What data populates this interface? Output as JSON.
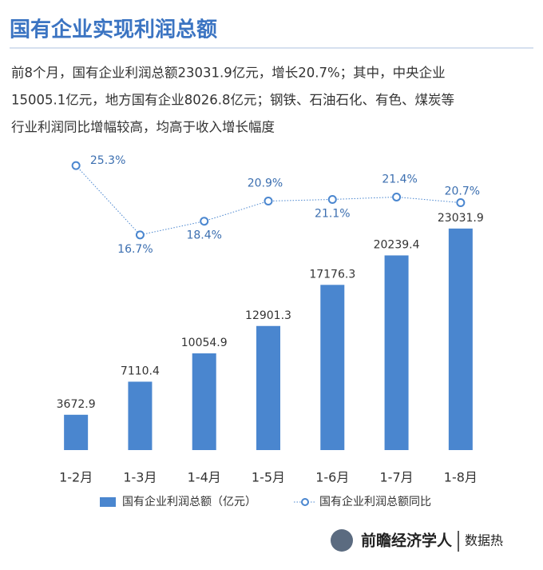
{
  "chart_data": {
    "type": "bar",
    "title": "国有企业实现利润总额",
    "subtitle": [
      "前8个月，国有企业利润总额23031.9亿元，增长20.7%；其中，中央企业",
      "15005.1亿元，地方国有企业8026.8亿元；钢铁、石油石化、有色、煤炭等",
      "行业利润同比增幅较高，均高于收入增长幅度"
    ],
    "categories": [
      "1-2月",
      "1-3月",
      "1-4月",
      "1-5月",
      "1-6月",
      "1-7月",
      "1-8月"
    ],
    "series": [
      {
        "name": "国有企业利润总额（亿元）",
        "type": "bar",
        "color": "#4a86cf",
        "values": [
          3672.9,
          7110.4,
          10054.9,
          12901.3,
          17176.3,
          20239.4,
          23031.9
        ]
      },
      {
        "name": "国有企业利润总额同比",
        "type": "line",
        "axis": "y2",
        "color": "#4a86cf",
        "values": [
          25.3,
          16.7,
          18.4,
          20.9,
          21.1,
          21.4,
          20.7
        ],
        "value_labels": [
          "25.3%",
          "16.7%",
          "18.4%",
          "20.9%",
          "21.1%",
          "21.4%",
          "20.7%"
        ]
      }
    ],
    "ylim": [
      0,
      31000
    ],
    "y2lim": [
      -10,
      27
    ],
    "legend": "bottom",
    "footer": [
      "前瞻经济学人",
      "数据热"
    ]
  }
}
